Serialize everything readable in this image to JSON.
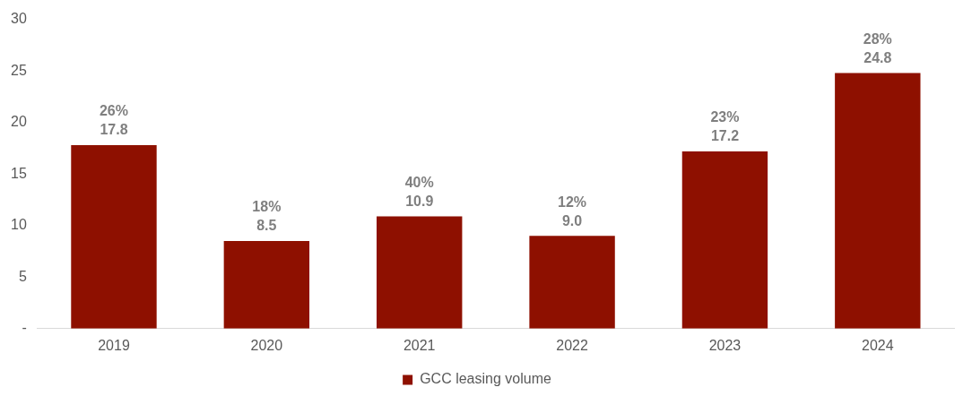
{
  "chart_data": {
    "type": "bar",
    "categories": [
      "2019",
      "2020",
      "2021",
      "2022",
      "2023",
      "2024"
    ],
    "series": [
      {
        "name": "GCC leasing volume",
        "color": "#8e1000",
        "values": [
          17.8,
          8.5,
          10.9,
          9.0,
          17.2,
          24.8
        ],
        "value_labels": [
          "26%\n17.8",
          "18%\n8.5",
          "40%\n10.9",
          "12%\n9.0",
          "23%\n17.2",
          "28%\n24.8"
        ]
      }
    ],
    "ylim": [
      0,
      30
    ],
    "yticks": [
      {
        "value": 0,
        "label": "-"
      },
      5,
      10,
      15,
      20,
      25,
      30
    ],
    "grid": false,
    "legend": "bottom"
  }
}
